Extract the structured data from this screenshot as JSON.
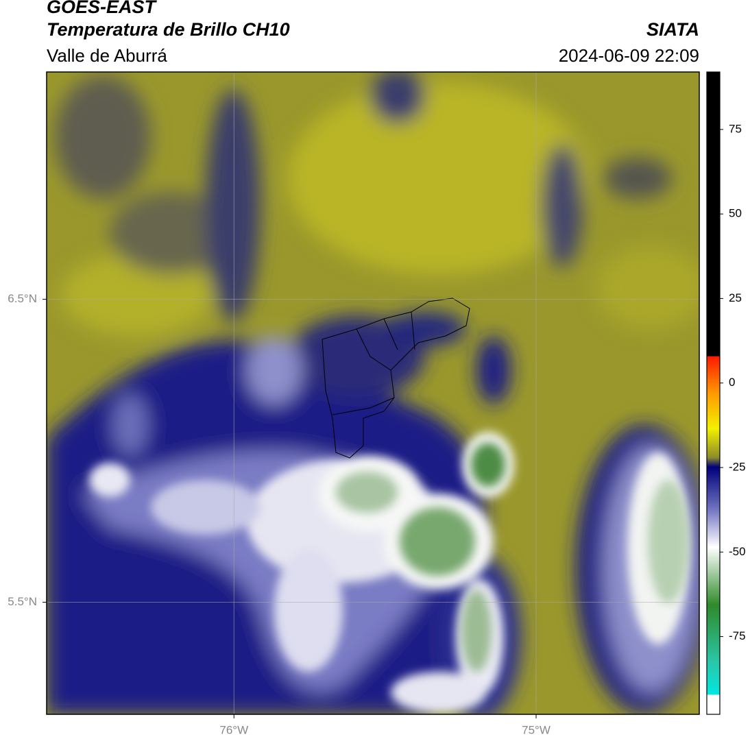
{
  "header": {
    "title": "GOES-EAST",
    "subtitle": "Temperatura de Brillo CH10",
    "region": "Valle de Aburrá",
    "source": "SIATA",
    "datetime": "2024-06-09 22:09"
  },
  "map": {
    "xlim": [
      -76.62,
      -74.46
    ],
    "ylim": [
      5.13,
      7.25
    ],
    "xticks": [
      {
        "value": -76,
        "label": "76°W"
      },
      {
        "value": -75,
        "label": "75°W"
      }
    ],
    "yticks": [
      {
        "value": 6.5,
        "label": "6.5°N"
      },
      {
        "value": 5.5,
        "label": "5.5°N"
      }
    ]
  },
  "colorbar": {
    "lim": [
      -98,
      92
    ],
    "ticks": [
      75,
      50,
      25,
      0,
      -25,
      -50,
      -75
    ]
  }
}
